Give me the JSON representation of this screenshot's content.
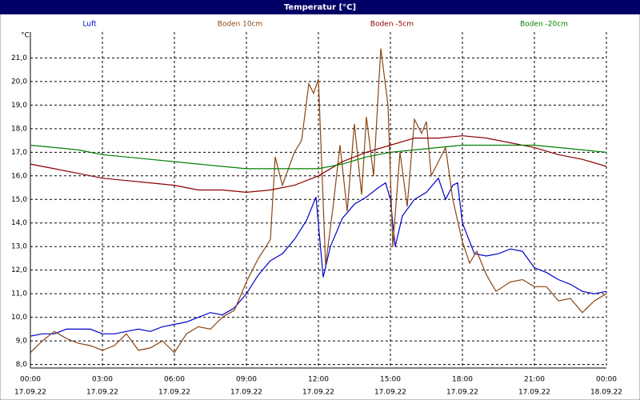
{
  "chart_data": {
    "type": "line",
    "title": "Temperatur [°C]",
    "y_label": "°C",
    "ylim": [
      7.85,
      22.1
    ],
    "yticks": [
      {
        "value": 8,
        "label": "8,0"
      },
      {
        "value": 9,
        "label": "9,0"
      },
      {
        "value": 10,
        "label": "10,0"
      },
      {
        "value": 11,
        "label": "11,0"
      },
      {
        "value": 12,
        "label": "12,0"
      },
      {
        "value": 13,
        "label": "13,0"
      },
      {
        "value": 14,
        "label": "14,0"
      },
      {
        "value": 15,
        "label": "15,0"
      },
      {
        "value": 16,
        "label": "16,0"
      },
      {
        "value": 17,
        "label": "17,0"
      },
      {
        "value": 18,
        "label": "18,0"
      },
      {
        "value": 19,
        "label": "19,0"
      },
      {
        "value": 20,
        "label": "20,0"
      },
      {
        "value": 21,
        "label": "21,0"
      }
    ],
    "xlim": [
      0,
      24
    ],
    "xticks": [
      {
        "value": 0,
        "label": "00:00"
      },
      {
        "value": 3,
        "label": "03:00"
      },
      {
        "value": 6,
        "label": "06:00"
      },
      {
        "value": 9,
        "label": "09:00"
      },
      {
        "value": 12,
        "label": "12:00"
      },
      {
        "value": 15,
        "label": "15:00"
      },
      {
        "value": 18,
        "label": "18:00"
      },
      {
        "value": 21,
        "label": "21:00"
      },
      {
        "value": 24,
        "label": "00:00"
      }
    ],
    "xtick_dates": [
      "17.09.22",
      "17.09.22",
      "17.09.22",
      "17.09.22",
      "17.09.22",
      "17.09.22",
      "17.09.22",
      "17.09.22",
      "18.09.22"
    ],
    "grid": true,
    "series": [
      {
        "name": "Luft",
        "color": "#0000cc",
        "x": [
          0,
          0.5,
          1,
          1.5,
          2,
          2.5,
          3,
          3.5,
          4,
          4.5,
          5,
          5.5,
          6,
          6.5,
          7,
          7.5,
          8,
          8.5,
          9,
          9.5,
          10,
          10.5,
          11,
          11.5,
          11.9,
          12.2,
          12.5,
          13,
          13.5,
          14,
          14.5,
          14.8,
          15,
          15.2,
          15.5,
          16,
          16.5,
          17,
          17.3,
          17.6,
          17.8,
          18,
          18.5,
          19,
          19.5,
          20,
          20.5,
          21,
          21.5,
          22,
          22.5,
          23,
          23.5,
          24
        ],
        "values": [
          9.2,
          9.3,
          9.3,
          9.5,
          9.5,
          9.5,
          9.3,
          9.3,
          9.4,
          9.5,
          9.4,
          9.6,
          9.7,
          9.8,
          10.0,
          10.2,
          10.1,
          10.4,
          11.0,
          11.8,
          12.4,
          12.7,
          13.3,
          14.1,
          15.1,
          11.7,
          13.0,
          14.2,
          14.8,
          15.1,
          15.5,
          15.7,
          15.0,
          13.0,
          14.3,
          15.0,
          15.3,
          15.9,
          15.0,
          15.6,
          15.7,
          14.0,
          12.7,
          12.6,
          12.7,
          12.9,
          12.8,
          12.1,
          11.9,
          11.6,
          11.4,
          11.1,
          11.0,
          11.1
        ]
      },
      {
        "name": "Boden 10cm",
        "color": "#8b4513",
        "x": [
          0,
          0.5,
          1,
          1.5,
          2,
          2.5,
          3,
          3.5,
          4,
          4.5,
          5,
          5.5,
          6,
          6.5,
          7,
          7.5,
          8,
          8.5,
          9,
          9.5,
          10,
          10.2,
          10.5,
          11,
          11.3,
          11.6,
          11.8,
          12,
          12.3,
          12.6,
          12.9,
          13.2,
          13.5,
          13.8,
          14,
          14.3,
          14.6,
          14.9,
          15.1,
          15.4,
          15.7,
          16,
          16.3,
          16.5,
          16.7,
          17,
          17.3,
          17.6,
          18,
          18.3,
          18.6,
          19,
          19.4,
          20,
          20.5,
          21,
          21.5,
          22,
          22.5,
          23,
          23.5,
          24
        ],
        "values": [
          8.5,
          9.0,
          9.4,
          9.1,
          8.9,
          8.8,
          8.6,
          8.8,
          9.3,
          8.6,
          8.7,
          9.0,
          8.5,
          9.3,
          9.6,
          9.5,
          10.0,
          10.3,
          11.5,
          12.5,
          13.3,
          16.8,
          15.6,
          17.0,
          17.5,
          19.9,
          19.5,
          20.1,
          12.2,
          14.6,
          17.3,
          14.5,
          18.2,
          15.2,
          18.5,
          16.0,
          21.4,
          19.0,
          13.0,
          17.0,
          14.7,
          18.4,
          17.8,
          18.3,
          16.0,
          16.6,
          17.2,
          15.0,
          13.2,
          12.3,
          12.8,
          11.8,
          11.1,
          11.5,
          11.6,
          11.3,
          11.3,
          10.7,
          10.8,
          10.2,
          10.7,
          11.0
        ]
      },
      {
        "name": "Boden -5cm",
        "color": "#8b0000",
        "x": [
          0,
          1,
          2,
          3,
          4,
          5,
          6,
          7,
          8,
          9,
          10,
          11,
          12,
          13,
          14,
          15,
          16,
          17,
          18,
          19,
          20,
          21,
          22,
          23,
          24
        ],
        "values": [
          16.5,
          16.3,
          16.1,
          15.9,
          15.8,
          15.7,
          15.6,
          15.4,
          15.4,
          15.3,
          15.4,
          15.6,
          16.0,
          16.6,
          17.0,
          17.3,
          17.6,
          17.6,
          17.7,
          17.6,
          17.4,
          17.2,
          16.9,
          16.7,
          16.4
        ]
      },
      {
        "name": "Boden -20cm",
        "color": "#008000",
        "x": [
          0,
          1,
          2,
          3,
          4,
          5,
          6,
          7,
          8,
          9,
          10,
          11,
          12,
          13,
          14,
          15,
          16,
          17,
          18,
          19,
          20,
          21,
          22,
          23,
          24
        ],
        "values": [
          17.3,
          17.2,
          17.1,
          16.9,
          16.8,
          16.7,
          16.6,
          16.5,
          16.4,
          16.3,
          16.3,
          16.3,
          16.3,
          16.5,
          16.8,
          17.0,
          17.1,
          17.2,
          17.3,
          17.3,
          17.3,
          17.3,
          17.2,
          17.1,
          17.0
        ]
      }
    ]
  }
}
